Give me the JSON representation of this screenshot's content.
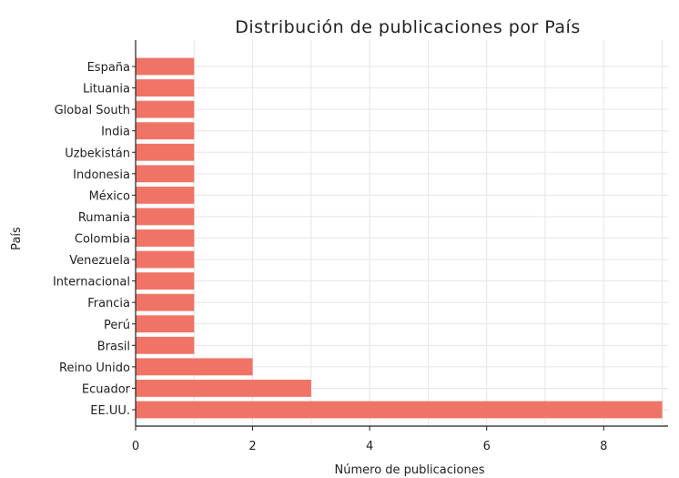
{
  "chart_data": {
    "type": "bar",
    "orientation": "horizontal",
    "title": "Distribución de publicaciones por País",
    "xlabel": "Número de publicaciones",
    "ylabel": "País",
    "categories": [
      "España",
      "Lituania",
      "Global South",
      "India",
      "Uzbekistán",
      "Indonesia",
      "México",
      "Rumania",
      "Colombia",
      "Venezuela",
      "Internacional",
      "Francia",
      "Perú",
      "Brasil",
      "Reino Unido",
      "Ecuador",
      "EE.UU."
    ],
    "values": [
      1,
      1,
      1,
      1,
      1,
      1,
      1,
      1,
      1,
      1,
      1,
      1,
      1,
      1,
      2,
      3,
      9
    ],
    "xlim": [
      0,
      9.1
    ],
    "xticks": [
      0,
      2,
      4,
      6,
      8
    ],
    "grid": true,
    "bar_color": "#f07466"
  }
}
